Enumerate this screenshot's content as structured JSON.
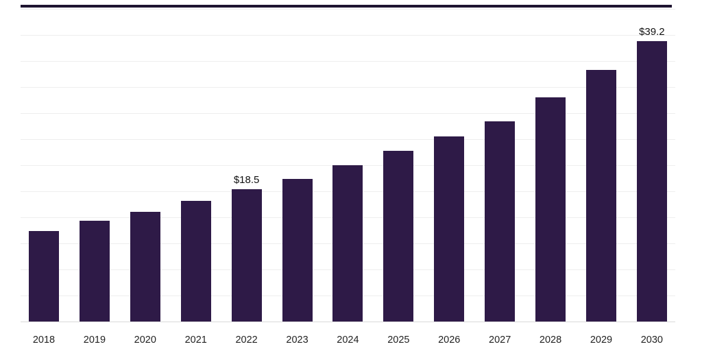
{
  "chart_data": {
    "type": "bar",
    "title": "",
    "xlabel": "",
    "ylabel": "",
    "categories": [
      "2018",
      "2019",
      "2020",
      "2021",
      "2022",
      "2023",
      "2024",
      "2025",
      "2026",
      "2027",
      "2028",
      "2029",
      "2030"
    ],
    "values": [
      12.7,
      14.1,
      15.3,
      16.9,
      18.5,
      19.9,
      21.9,
      23.9,
      25.9,
      28.0,
      31.3,
      35.2,
      39.2
    ],
    "data_labels": {
      "2022": "$18.5",
      "2030": "$39.2"
    },
    "bar_color": "#2e1a47",
    "ylim": [
      0,
      44
    ],
    "grid": true,
    "legend": false,
    "value_unit": "USD billions (implied by $ labels)"
  }
}
